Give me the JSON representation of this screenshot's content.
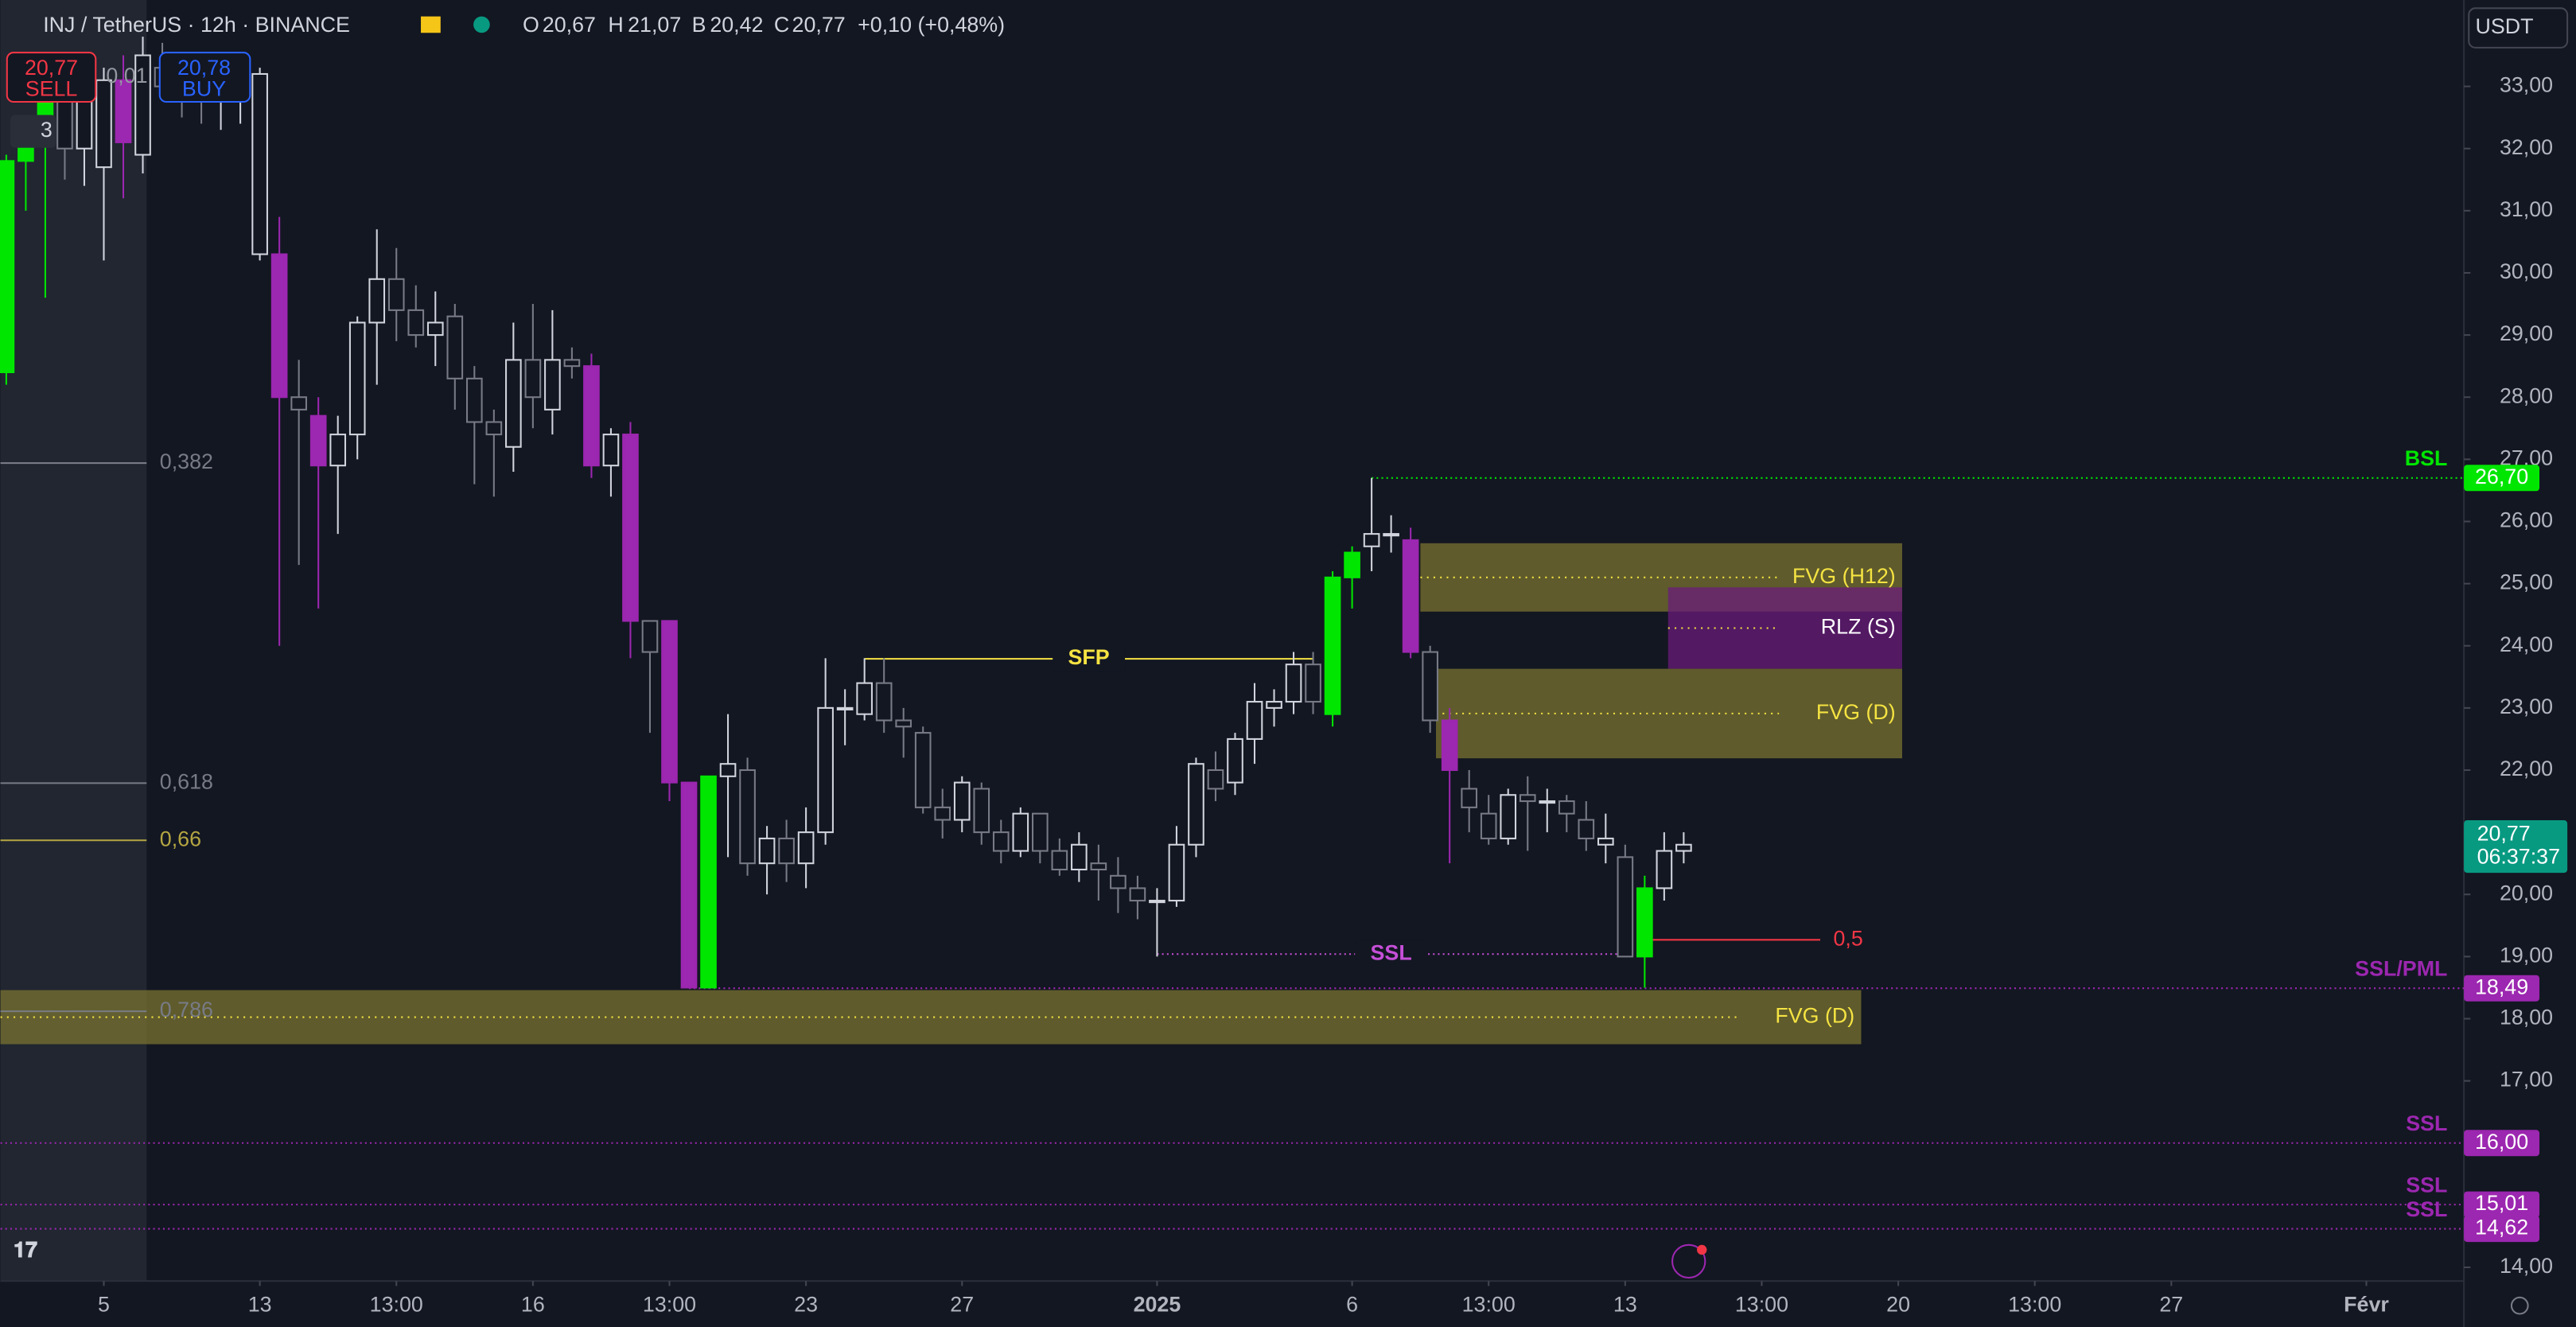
{
  "header": {
    "symbol": "INJ / TetherUS · 12h · BINANCE",
    "o_label": "O",
    "o": "20,67",
    "h_label": "H",
    "h": "21,07",
    "b_label": "B",
    "b": "20,42",
    "c_label": "C",
    "c": "20,77",
    "change": "+0,10 (+0,48%)",
    "sell_price": "20,77",
    "sell": "SELL",
    "buy_price": "20,78",
    "buy": "BUY",
    "spread": "0,01",
    "indicators": "3",
    "currency": "USDT"
  },
  "chart_data": {
    "type": "candlestick",
    "palette": {
      "up": "#00e600",
      "down": "#9c27b0",
      "rise": "#d1d4dc",
      "fall": "#787b86"
    },
    "kinds": [
      "up",
      "up",
      "up",
      "n",
      "n",
      "n",
      "down",
      "n",
      "n",
      "n",
      "n",
      "n",
      "n",
      "n",
      "down",
      "n",
      "down",
      "n",
      "n",
      "n",
      "n",
      "n",
      "n",
      "n",
      "n",
      "n",
      "n",
      "n",
      "n",
      "n",
      "down",
      "n",
      "down",
      "n",
      "down",
      "down",
      "up",
      "n",
      "n",
      "n",
      "n",
      "n",
      "n",
      "n",
      "n",
      "n",
      "n",
      "n",
      "n",
      "n",
      "n",
      "n",
      "n",
      "n",
      "n",
      "n",
      "n",
      "n",
      "n",
      "n",
      "n",
      "n",
      "n",
      "n",
      "n",
      "n",
      "n",
      "n",
      "up",
      "up",
      "n",
      "n",
      "down",
      "n",
      "down",
      "n",
      "n",
      "n",
      "n",
      "n",
      "n",
      "n",
      "n",
      "n",
      "up",
      "n",
      "n"
    ],
    "open": [
      28.4,
      31.8,
      32.3,
      32.8,
      32.0,
      31.7,
      33.1,
      31.9,
      33.3,
      33.0,
      32.9,
      32.9,
      32.9,
      30.3,
      30.3,
      28.0,
      27.7,
      26.9,
      27.4,
      29.2,
      29.9,
      29.4,
      29.0,
      29.3,
      28.3,
      27.6,
      27.2,
      28.6,
      27.8,
      28.6,
      28.5,
      26.9,
      27.4,
      24.4,
      24.4,
      21.8,
      18.5,
      21.9,
      22.0,
      20.5,
      20.9,
      20.5,
      21.0,
      23.0,
      22.9,
      23.4,
      22.8,
      22.6,
      21.4,
      21.2,
      21.7,
      21.0,
      20.7,
      21.3,
      20.7,
      20.4,
      20.5,
      20.3,
      20.1,
      19.9,
      19.9,
      20.8,
      22.0,
      21.8,
      22.5,
      23.0,
      23.1,
      23.7,
      22.9,
      25.1,
      25.6,
      25.8,
      25.7,
      23.9,
      22.8,
      21.7,
      21.3,
      20.9,
      21.6,
      21.5,
      21.5,
      21.2,
      20.8,
      20.6,
      19.0,
      20.1,
      20.7
    ],
    "high": [
      31.9,
      32.3,
      33.3,
      33.4,
      33.5,
      33.3,
      33.5,
      33.8,
      33.7,
      33.4,
      33.3,
      33.2,
      33.3,
      33.3,
      30.9,
      28.6,
      28.0,
      27.7,
      29.3,
      30.7,
      30.4,
      29.8,
      29.7,
      29.5,
      28.5,
      27.8,
      29.2,
      29.5,
      29.4,
      28.8,
      28.7,
      27.5,
      27.6,
      24.4,
      24.4,
      21.8,
      21.9,
      22.9,
      22.2,
      21.1,
      21.2,
      21.4,
      23.8,
      23.3,
      23.8,
      23.8,
      23.0,
      22.7,
      21.7,
      21.9,
      21.8,
      21.2,
      21.4,
      21.3,
      20.9,
      21.0,
      20.8,
      20.6,
      20.3,
      20.1,
      21.1,
      22.2,
      22.3,
      22.6,
      23.4,
      23.3,
      23.9,
      23.9,
      25.2,
      25.6,
      26.7,
      26.1,
      25.9,
      24.0,
      23.0,
      22.0,
      21.6,
      21.7,
      21.9,
      21.7,
      21.6,
      21.5,
      21.3,
      20.8,
      20.3,
      21.0,
      21.0
    ],
    "low": [
      28.2,
      31.0,
      29.6,
      31.5,
      31.4,
      30.2,
      31.2,
      31.6,
      32.8,
      32.5,
      32.4,
      32.3,
      32.4,
      30.2,
      24.0,
      25.3,
      24.6,
      25.8,
      27.0,
      28.2,
      28.9,
      28.8,
      28.5,
      27.8,
      26.6,
      26.4,
      26.8,
      27.5,
      27.4,
      28.3,
      26.7,
      26.4,
      23.8,
      22.6,
      21.5,
      18.5,
      18.5,
      20.6,
      20.3,
      20.0,
      20.2,
      20.1,
      20.8,
      22.4,
      22.8,
      22.6,
      22.2,
      21.3,
      20.9,
      21.0,
      20.8,
      20.5,
      20.6,
      20.5,
      20.3,
      20.2,
      19.9,
      19.7,
      19.6,
      19.0,
      19.8,
      20.6,
      21.5,
      21.6,
      22.1,
      22.7,
      22.9,
      22.9,
      22.7,
      24.6,
      25.2,
      25.5,
      23.8,
      22.6,
      20.5,
      21.0,
      20.8,
      20.8,
      20.7,
      21.0,
      21.0,
      20.7,
      20.5,
      19.0,
      18.5,
      19.9,
      20.5
    ],
    "close": [
      31.8,
      32.1,
      32.8,
      32.0,
      33.1,
      33.1,
      32.1,
      33.5,
      33.0,
      32.8,
      32.8,
      32.9,
      33.0,
      33.2,
      28.0,
      27.8,
      26.9,
      27.4,
      29.2,
      29.9,
      29.4,
      29.0,
      29.2,
      28.3,
      27.6,
      27.4,
      28.6,
      28.0,
      28.6,
      28.5,
      26.9,
      27.4,
      24.4,
      23.9,
      21.8,
      18.5,
      21.9,
      22.1,
      20.5,
      20.9,
      20.5,
      21.0,
      23.0,
      23.0,
      23.4,
      22.8,
      22.7,
      21.4,
      21.2,
      21.8,
      21.0,
      20.7,
      21.3,
      20.7,
      20.4,
      20.8,
      20.4,
      20.1,
      19.9,
      19.9,
      20.8,
      22.1,
      21.7,
      22.5,
      23.1,
      23.1,
      23.7,
      23.1,
      25.1,
      25.5,
      25.8,
      25.8,
      23.9,
      22.8,
      22.0,
      21.4,
      20.9,
      21.6,
      21.5,
      21.5,
      21.3,
      20.9,
      20.9,
      19.0,
      20.1,
      20.7,
      20.8
    ],
    "ylim": [
      13.78,
      34.39
    ],
    "yticks": [
      {
        "value": 33,
        "label": "33,00"
      },
      {
        "value": 32,
        "label": "32,00"
      },
      {
        "value": 31,
        "label": "31,00"
      },
      {
        "value": 30,
        "label": "30,00"
      },
      {
        "value": 29,
        "label": "29,00"
      },
      {
        "value": 28,
        "label": "28,00"
      },
      {
        "value": 27,
        "label": "27,00"
      },
      {
        "value": 26,
        "label": "26,00"
      },
      {
        "value": 25,
        "label": "25,00"
      },
      {
        "value": 24,
        "label": "24,00"
      },
      {
        "value": 23,
        "label": "23,00"
      },
      {
        "value": 22,
        "label": "22,00"
      },
      {
        "value": 21,
        "label": "21,00"
      },
      {
        "value": 20,
        "label": "20,00"
      },
      {
        "value": 19,
        "label": "19,00"
      },
      {
        "value": 18,
        "label": "18,00"
      },
      {
        "value": 17,
        "label": "17,00"
      },
      {
        "value": 14,
        "label": "14,00"
      }
    ],
    "xlim": [
      -0.3,
      126
    ],
    "xticks": [
      5,
      13,
      {
        "value": 20,
        "label": "13:00"
      },
      {
        "value": 27,
        "label": "16"
      },
      {
        "value": 34,
        "label": "13:00"
      },
      {
        "value": 41,
        "label": "23"
      },
      {
        "value": 49,
        "label": "27"
      },
      {
        "value": 59,
        "label": "2025"
      },
      {
        "value": 69,
        "label": "6"
      },
      {
        "value": 76,
        "label": "13:00"
      },
      {
        "value": 83,
        "label": "13"
      },
      {
        "value": 90,
        "label": "13:00"
      },
      {
        "value": 97,
        "label": "20"
      },
      {
        "value": 104,
        "label": "13:00"
      },
      {
        "value": 111,
        "label": "27"
      },
      {
        "value": 121,
        "label": "Févr"
      }
    ],
    "zones": [
      {
        "label": "FVG (H12)",
        "top": 25.65,
        "bottom": 24.55,
        "start": 72.5,
        "end": 97.2,
        "color": "#7a7330"
      },
      {
        "label": "RLZ (S)",
        "top": 24.94,
        "bottom": 23.63,
        "start": 85.2,
        "end": 97.2,
        "color": "#6a1b7a"
      },
      {
        "label": "FVG (D)",
        "top": 23.63,
        "bottom": 22.19,
        "start": 73.3,
        "end": 97.2,
        "color": "#7a7330"
      },
      {
        "label": "FVG (D)",
        "top": 18.46,
        "bottom": 17.59,
        "start": -0.3,
        "end": 95.1,
        "color": "#7a7330"
      }
    ],
    "fibs": [
      {
        "label": "0,382",
        "value": 26.94,
        "color": "#787b86"
      },
      {
        "label": "0,618",
        "value": 21.79,
        "color": "#787b86"
      },
      {
        "label": "0,66",
        "value": 20.87,
        "color": "#b5a642"
      },
      {
        "label": "0,786",
        "value": 18.12,
        "color": "#787b86"
      }
    ],
    "segments": [
      {
        "label": "SFP",
        "value": 23.79,
        "start": 44,
        "end": 67,
        "color": "#f5e342"
      },
      {
        "label": "SSL",
        "value": 19.04,
        "start": 59,
        "end": 83,
        "color": "#c64fd8"
      },
      {
        "label": "0,5",
        "value": 19.27,
        "start": 84,
        "end": 93,
        "color": "#f23645"
      }
    ],
    "levels": [
      {
        "label": "BSL",
        "value": 26.7,
        "value_label": "26,70",
        "start": 70,
        "color": "#00e600"
      },
      {
        "label": "SSL/PML",
        "value": 18.49,
        "value_label": "18,49",
        "start": 35,
        "color": "#9c27b0"
      },
      {
        "label": "SSL",
        "value": 16.0,
        "value_label": "16,00",
        "start": -0.3,
        "color": "#9c27b0"
      },
      {
        "label": "SSL",
        "value": 15.01,
        "value_label": "15,01",
        "start": -0.3,
        "color": "#9c27b0"
      },
      {
        "label": "SSL",
        "value": 14.62,
        "value_label": "14,62",
        "start": -0.3,
        "color": "#9c27b0"
      }
    ],
    "last": {
      "value": 20.77,
      "value_label": "20,77",
      "countdown": "06:37:37",
      "color": "#089981"
    }
  }
}
